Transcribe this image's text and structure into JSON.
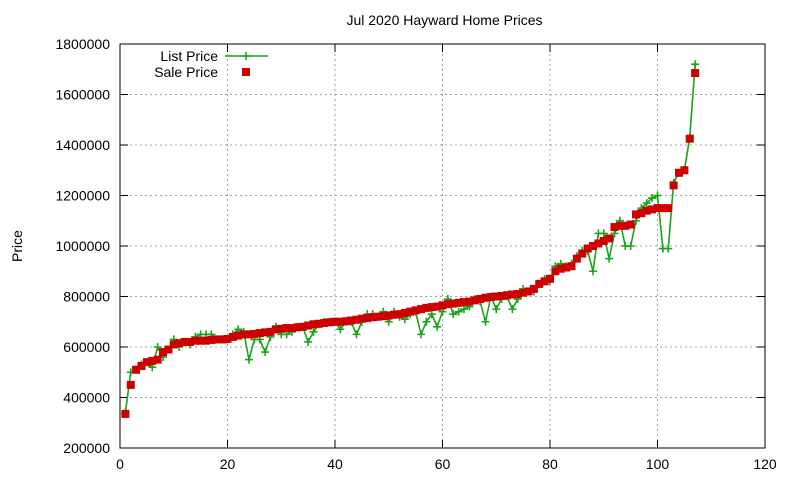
{
  "chart_data": {
    "type": "line",
    "title": "Jul 2020 Hayward Home Prices",
    "xlabel": "",
    "ylabel": "Price",
    "xlim": [
      0,
      120
    ],
    "ylim": [
      200000,
      1800000
    ],
    "xticks": [
      0,
      20,
      40,
      60,
      80,
      100,
      120
    ],
    "yticks": [
      200000,
      400000,
      600000,
      800000,
      1000000,
      1200000,
      1400000,
      1600000,
      1800000
    ],
    "grid": true,
    "legend": "top-left",
    "series": [
      {
        "name": "List Price",
        "style": "line-points",
        "marker": "plus",
        "color": "#1aa31a",
        "x": [
          1,
          2,
          3,
          4,
          5,
          6,
          7,
          8,
          9,
          10,
          11,
          12,
          13,
          14,
          15,
          16,
          17,
          18,
          19,
          20,
          21,
          22,
          23,
          24,
          25,
          26,
          27,
          28,
          29,
          30,
          31,
          32,
          33,
          34,
          35,
          36,
          37,
          38,
          39,
          40,
          41,
          42,
          43,
          44,
          45,
          46,
          47,
          48,
          49,
          50,
          51,
          52,
          53,
          54,
          55,
          56,
          57,
          58,
          59,
          60,
          61,
          62,
          63,
          64,
          65,
          66,
          67,
          68,
          69,
          70,
          71,
          72,
          73,
          74,
          75,
          76,
          77,
          78,
          79,
          80,
          81,
          82,
          83,
          84,
          85,
          86,
          87,
          88,
          89,
          90,
          91,
          92,
          93,
          94,
          95,
          96,
          97,
          98,
          99,
          100,
          101,
          102,
          103,
          104,
          105,
          106,
          107
        ],
        "y": [
          340000,
          500000,
          510000,
          530000,
          540000,
          520000,
          600000,
          560000,
          590000,
          630000,
          600000,
          620000,
          610000,
          640000,
          650000,
          650000,
          650000,
          630000,
          630000,
          630000,
          650000,
          670000,
          660000,
          550000,
          630000,
          630000,
          580000,
          640000,
          680000,
          650000,
          650000,
          660000,
          680000,
          680000,
          620000,
          660000,
          690000,
          700000,
          700000,
          700000,
          670000,
          700000,
          700000,
          650000,
          700000,
          730000,
          730000,
          720000,
          740000,
          700000,
          740000,
          720000,
          710000,
          730000,
          740000,
          650000,
          700000,
          730000,
          680000,
          740000,
          790000,
          730000,
          740000,
          750000,
          760000,
          790000,
          780000,
          700000,
          800000,
          750000,
          790000,
          800000,
          750000,
          790000,
          830000,
          820000,
          820000,
          850000,
          870000,
          860000,
          920000,
          930000,
          920000,
          930000,
          960000,
          980000,
          980000,
          900000,
          1050000,
          1050000,
          950000,
          1050000,
          1100000,
          1000000,
          1000000,
          1100000,
          1150000,
          1170000,
          1190000,
          1200000,
          990000,
          990000,
          1250000,
          1290000,
          1300000,
          1430000,
          1720000
        ]
      },
      {
        "name": "Sale Price",
        "style": "points",
        "marker": "square",
        "color": "#cc0000",
        "x": [
          1,
          2,
          3,
          4,
          5,
          6,
          7,
          8,
          9,
          10,
          11,
          12,
          13,
          14,
          15,
          16,
          17,
          18,
          19,
          20,
          21,
          22,
          23,
          24,
          25,
          26,
          27,
          28,
          29,
          30,
          31,
          32,
          33,
          34,
          35,
          36,
          37,
          38,
          39,
          40,
          41,
          42,
          43,
          44,
          45,
          46,
          47,
          48,
          49,
          50,
          51,
          52,
          53,
          54,
          55,
          56,
          57,
          58,
          59,
          60,
          61,
          62,
          63,
          64,
          65,
          66,
          67,
          68,
          69,
          70,
          71,
          72,
          73,
          74,
          75,
          76,
          77,
          78,
          79,
          80,
          81,
          82,
          83,
          84,
          85,
          86,
          87,
          88,
          89,
          90,
          91,
          92,
          93,
          94,
          95,
          96,
          97,
          98,
          99,
          100,
          101,
          102,
          103,
          104,
          105,
          106,
          107
        ],
        "y": [
          335000,
          450000,
          510000,
          525000,
          540000,
          545000,
          550000,
          580000,
          590000,
          610000,
          615000,
          620000,
          620000,
          625000,
          625000,
          625000,
          628000,
          630000,
          630000,
          632000,
          640000,
          645000,
          650000,
          650000,
          652000,
          655000,
          658000,
          660000,
          670000,
          672000,
          675000,
          675000,
          678000,
          680000,
          685000,
          690000,
          692000,
          695000,
          698000,
          700000,
          700000,
          702000,
          705000,
          708000,
          712000,
          715000,
          718000,
          720000,
          722000,
          725000,
          728000,
          730000,
          735000,
          740000,
          745000,
          750000,
          755000,
          758000,
          760000,
          765000,
          770000,
          772000,
          775000,
          778000,
          780000,
          785000,
          790000,
          795000,
          798000,
          800000,
          802000,
          805000,
          808000,
          810000,
          815000,
          820000,
          830000,
          850000,
          860000,
          870000,
          900000,
          910000,
          915000,
          920000,
          950000,
          970000,
          990000,
          1000000,
          1010000,
          1020000,
          1030000,
          1075000,
          1080000,
          1080000,
          1085000,
          1125000,
          1130000,
          1140000,
          1145000,
          1150000,
          1150000,
          1150000,
          1240000,
          1290000,
          1300000,
          1425000,
          1685000
        ]
      }
    ]
  }
}
